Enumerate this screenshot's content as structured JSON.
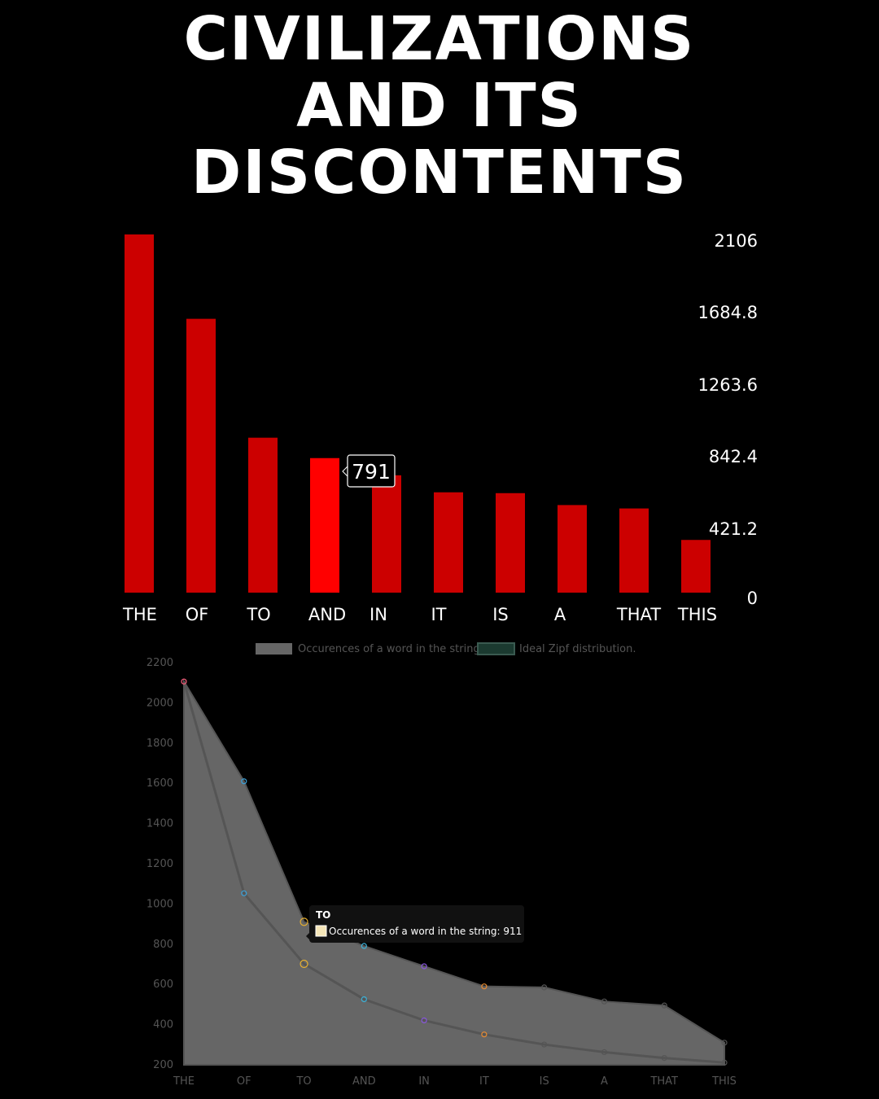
{
  "title": {
    "line1": "CIVILIZATIONS",
    "line2": "AND ITS",
    "line3": "DISCONTENTS"
  },
  "chart_data": [
    {
      "type": "bar",
      "categories": [
        "THE",
        "OF",
        "TO",
        "AND",
        "IN",
        "IT",
        "IS",
        "A",
        "THAT",
        "THIS"
      ],
      "values": [
        2106,
        1610,
        911,
        791,
        690,
        590,
        585,
        515,
        495,
        310
      ],
      "y_ticks": [
        "2106",
        "1684.8",
        "1263.6",
        "842.4",
        "421.2",
        "0"
      ],
      "ylim": [
        0,
        2106
      ],
      "y_axis_side": "right",
      "highlighted_index": 3,
      "tooltip": "791",
      "colors": {
        "bar": "#cc0000",
        "highlight": "#ff0000"
      }
    },
    {
      "type": "area",
      "categories": [
        "THE",
        "OF",
        "TO",
        "AND",
        "IN",
        "IT",
        "IS",
        "A",
        "THAT",
        "THIS"
      ],
      "series": [
        {
          "name": "Occurences of a word in the string",
          "values": [
            2106,
            1610,
            911,
            791,
            690,
            590,
            585,
            515,
            495,
            310
          ],
          "color": "#666666"
        },
        {
          "name": "Ideal Zipf distribution.",
          "values": [
            2106,
            1053,
            702,
            526,
            421,
            351,
            301,
            263,
            234,
            211
          ],
          "color": "#1b3a30"
        }
      ],
      "y_ticks": [
        "2200",
        "2000",
        "1800",
        "1600",
        "1400",
        "1200",
        "1000",
        "800",
        "600",
        "400",
        "200"
      ],
      "ylim": [
        200,
        2200
      ],
      "legend": "top",
      "tooltip": {
        "title": "TO",
        "label": "Occurences of a word in the string: 911"
      },
      "point_colors": [
        "#e0556f",
        "#3aa0d8",
        "#e8b030",
        "#3ab0d8",
        "#8855dd",
        "#e88a30",
        "#555555",
        "#555555",
        "#555555",
        "#555555"
      ]
    }
  ]
}
